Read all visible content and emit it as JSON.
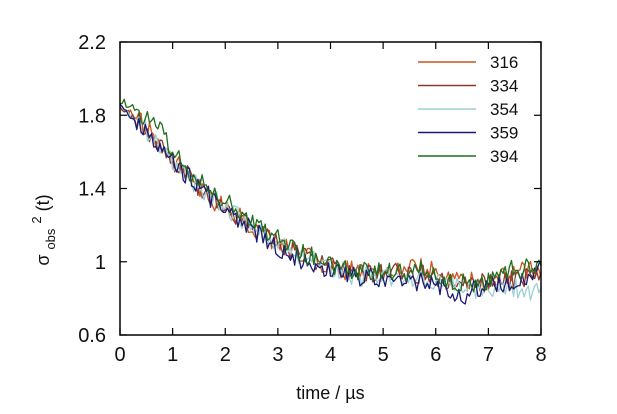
{
  "chart_data": {
    "type": "line",
    "xlabel": "time / µs",
    "ylabel_main": "σ",
    "ylabel_sub": "obs",
    "ylabel_sup": "2",
    "ylabel_tail": " (t)",
    "xlim": [
      0,
      8
    ],
    "ylim": [
      0.6,
      2.2
    ],
    "x_ticks": [
      0,
      1,
      2,
      3,
      4,
      5,
      6,
      7,
      8
    ],
    "x_tick_labels": [
      "0",
      "1",
      "2",
      "3",
      "4",
      "5",
      "6",
      "7",
      "8"
    ],
    "y_ticks": [
      0.6,
      1.0,
      1.4,
      1.8,
      2.2
    ],
    "y_tick_labels": [
      "0.6",
      "1",
      "1.4",
      "1.8",
      "2.2"
    ],
    "grid": false,
    "legend_position": "top-right",
    "series": [
      {
        "name": "316",
        "color": "#c8541e",
        "points": [
          [
            0,
            1.85
          ],
          [
            0.2,
            1.81
          ],
          [
            0.4,
            1.76
          ],
          [
            0.6,
            1.7
          ],
          [
            0.8,
            1.64
          ],
          [
            1.0,
            1.55
          ],
          [
            1.2,
            1.5
          ],
          [
            1.4,
            1.43
          ],
          [
            1.6,
            1.38
          ],
          [
            1.8,
            1.33
          ],
          [
            2.0,
            1.3
          ],
          [
            2.2,
            1.25
          ],
          [
            2.4,
            1.22
          ],
          [
            2.6,
            1.17
          ],
          [
            2.8,
            1.13
          ],
          [
            3.0,
            1.1
          ],
          [
            3.2,
            1.07
          ],
          [
            3.4,
            1.05
          ],
          [
            3.6,
            1.02
          ],
          [
            3.8,
            1.0
          ],
          [
            4.0,
            0.98
          ],
          [
            4.2,
            0.96
          ],
          [
            4.4,
            0.95
          ],
          [
            4.6,
            0.95
          ],
          [
            4.8,
            0.94
          ],
          [
            5.0,
            0.95
          ],
          [
            5.2,
            0.97
          ],
          [
            5.4,
            0.96
          ],
          [
            5.6,
            0.96
          ],
          [
            5.8,
            0.97
          ],
          [
            6.0,
            0.95
          ],
          [
            6.2,
            0.9
          ],
          [
            6.4,
            0.91
          ],
          [
            6.6,
            0.9
          ],
          [
            6.8,
            0.87
          ],
          [
            7.0,
            0.9
          ],
          [
            7.2,
            0.91
          ],
          [
            7.4,
            0.92
          ],
          [
            7.6,
            0.94
          ],
          [
            7.8,
            0.95
          ],
          [
            8.0,
            0.96
          ]
        ]
      },
      {
        "name": "334",
        "color": "#8b3a2a",
        "points": [
          [
            0,
            1.84
          ],
          [
            0.2,
            1.8
          ],
          [
            0.4,
            1.76
          ],
          [
            0.6,
            1.69
          ],
          [
            0.8,
            1.63
          ],
          [
            1.0,
            1.56
          ],
          [
            1.2,
            1.49
          ],
          [
            1.4,
            1.44
          ],
          [
            1.6,
            1.38
          ],
          [
            1.8,
            1.34
          ],
          [
            2.0,
            1.29
          ],
          [
            2.2,
            1.26
          ],
          [
            2.4,
            1.21
          ],
          [
            2.6,
            1.17
          ],
          [
            2.8,
            1.13
          ],
          [
            3.0,
            1.1
          ],
          [
            3.2,
            1.07
          ],
          [
            3.4,
            1.04
          ],
          [
            3.6,
            1.02
          ],
          [
            3.8,
            1.0
          ],
          [
            4.0,
            0.98
          ],
          [
            4.2,
            0.96
          ],
          [
            4.4,
            0.95
          ],
          [
            4.6,
            0.95
          ],
          [
            4.8,
            0.94
          ],
          [
            5.0,
            0.94
          ],
          [
            5.2,
            0.94
          ],
          [
            5.4,
            0.93
          ],
          [
            5.6,
            0.93
          ],
          [
            5.8,
            0.94
          ],
          [
            6.0,
            0.91
          ],
          [
            6.2,
            0.88
          ],
          [
            6.4,
            0.88
          ],
          [
            6.6,
            0.87
          ],
          [
            6.8,
            0.88
          ],
          [
            7.0,
            0.89
          ],
          [
            7.2,
            0.89
          ],
          [
            7.4,
            0.9
          ],
          [
            7.6,
            0.91
          ],
          [
            7.8,
            0.93
          ],
          [
            8.0,
            0.92
          ]
        ]
      },
      {
        "name": "354",
        "color": "#9ccfd6",
        "points": [
          [
            0,
            1.84
          ],
          [
            0.2,
            1.8
          ],
          [
            0.4,
            1.75
          ],
          [
            0.6,
            1.69
          ],
          [
            0.8,
            1.62
          ],
          [
            1.0,
            1.55
          ],
          [
            1.2,
            1.49
          ],
          [
            1.4,
            1.43
          ],
          [
            1.6,
            1.38
          ],
          [
            1.8,
            1.34
          ],
          [
            2.0,
            1.3
          ],
          [
            2.2,
            1.26
          ],
          [
            2.4,
            1.22
          ],
          [
            2.6,
            1.18
          ],
          [
            2.8,
            1.14
          ],
          [
            3.0,
            1.1
          ],
          [
            3.2,
            1.07
          ],
          [
            3.4,
            1.04
          ],
          [
            3.6,
            1.01
          ],
          [
            3.8,
            0.99
          ],
          [
            4.0,
            0.97
          ],
          [
            4.2,
            0.95
          ],
          [
            4.4,
            0.93
          ],
          [
            4.6,
            0.92
          ],
          [
            4.8,
            0.92
          ],
          [
            5.0,
            0.91
          ],
          [
            5.2,
            0.91
          ],
          [
            5.4,
            0.9
          ],
          [
            5.6,
            0.9
          ],
          [
            5.8,
            0.9
          ],
          [
            6.0,
            0.89
          ],
          [
            6.2,
            0.87
          ],
          [
            6.4,
            0.86
          ],
          [
            6.6,
            0.85
          ],
          [
            6.8,
            0.84
          ],
          [
            7.0,
            0.85
          ],
          [
            7.2,
            0.85
          ],
          [
            7.4,
            0.86
          ],
          [
            7.6,
            0.85
          ],
          [
            7.8,
            0.84
          ],
          [
            8.0,
            0.88
          ]
        ]
      },
      {
        "name": "359",
        "color": "#1a1a72",
        "points": [
          [
            0,
            1.84
          ],
          [
            0.2,
            1.79
          ],
          [
            0.4,
            1.75
          ],
          [
            0.6,
            1.69
          ],
          [
            0.8,
            1.63
          ],
          [
            1.0,
            1.56
          ],
          [
            1.2,
            1.49
          ],
          [
            1.4,
            1.43
          ],
          [
            1.6,
            1.38
          ],
          [
            1.8,
            1.33
          ],
          [
            2.0,
            1.28
          ],
          [
            2.2,
            1.24
          ],
          [
            2.4,
            1.2
          ],
          [
            2.6,
            1.15
          ],
          [
            2.8,
            1.12
          ],
          [
            3.0,
            1.08
          ],
          [
            3.2,
            1.05
          ],
          [
            3.4,
            1.02
          ],
          [
            3.6,
            1.0
          ],
          [
            3.8,
            0.98
          ],
          [
            4.0,
            0.96
          ],
          [
            4.2,
            0.94
          ],
          [
            4.4,
            0.92
          ],
          [
            4.6,
            0.91
          ],
          [
            4.8,
            0.91
          ],
          [
            5.0,
            0.9
          ],
          [
            5.2,
            0.9
          ],
          [
            5.4,
            0.89
          ],
          [
            5.6,
            0.89
          ],
          [
            5.8,
            0.89
          ],
          [
            6.0,
            0.88
          ],
          [
            6.2,
            0.86
          ],
          [
            6.4,
            0.8
          ],
          [
            6.6,
            0.83
          ],
          [
            6.8,
            0.85
          ],
          [
            7.0,
            0.86
          ],
          [
            7.2,
            0.87
          ],
          [
            7.4,
            0.88
          ],
          [
            7.6,
            0.9
          ],
          [
            7.8,
            0.91
          ],
          [
            8.0,
            0.95
          ]
        ]
      },
      {
        "name": "394",
        "color": "#1e6e1e",
        "points": [
          [
            0,
            1.88
          ],
          [
            0.2,
            1.85
          ],
          [
            0.4,
            1.8
          ],
          [
            0.6,
            1.76
          ],
          [
            0.8,
            1.7
          ],
          [
            1.0,
            1.6
          ],
          [
            1.2,
            1.54
          ],
          [
            1.4,
            1.47
          ],
          [
            1.6,
            1.42
          ],
          [
            1.8,
            1.37
          ],
          [
            2.0,
            1.33
          ],
          [
            2.2,
            1.28
          ],
          [
            2.4,
            1.24
          ],
          [
            2.6,
            1.2
          ],
          [
            2.8,
            1.16
          ],
          [
            3.0,
            1.13
          ],
          [
            3.2,
            1.1
          ],
          [
            3.4,
            1.06
          ],
          [
            3.6,
            1.03
          ],
          [
            3.8,
            1.01
          ],
          [
            4.0,
            0.99
          ],
          [
            4.2,
            0.97
          ],
          [
            4.4,
            0.96
          ],
          [
            4.6,
            0.95
          ],
          [
            4.8,
            0.95
          ],
          [
            5.0,
            0.95
          ],
          [
            5.2,
            0.95
          ],
          [
            5.4,
            0.94
          ],
          [
            5.6,
            0.95
          ],
          [
            5.8,
            0.96
          ],
          [
            6.0,
            0.92
          ],
          [
            6.2,
            0.9
          ],
          [
            6.4,
            0.89
          ],
          [
            6.6,
            0.88
          ],
          [
            6.8,
            0.88
          ],
          [
            7.0,
            0.9
          ],
          [
            7.2,
            0.92
          ],
          [
            7.4,
            0.95
          ],
          [
            7.6,
            0.96
          ],
          [
            7.8,
            0.98
          ],
          [
            8.0,
            0.98
          ]
        ]
      }
    ]
  }
}
